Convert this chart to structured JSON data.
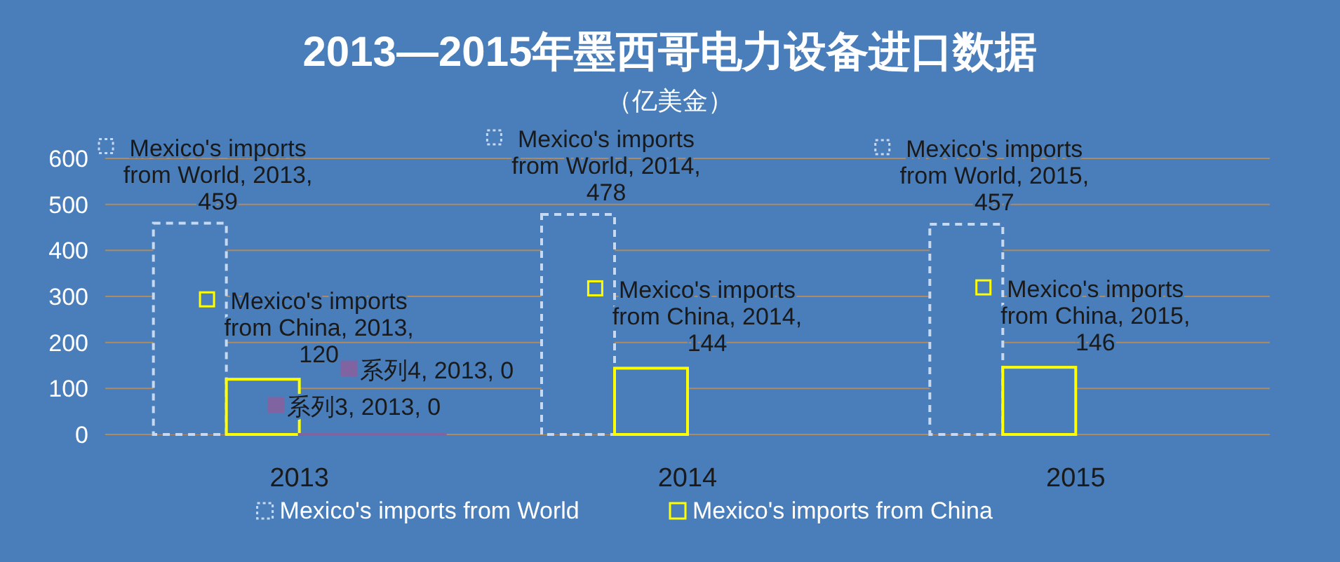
{
  "chart_data": {
    "type": "bar",
    "title": "2013—2015年墨西哥电力设备进口数据",
    "subtitle": "（亿美金）",
    "categories": [
      "2013",
      "2014",
      "2015"
    ],
    "series": [
      {
        "name": "Mexico's imports from World",
        "color": "#c6d9f1",
        "line_style": "dashed",
        "values": [
          459,
          478,
          457
        ],
        "value_labels": [
          "Mexico's imports from World, 2013, 459",
          "Mexico's imports from World, 2014, 478",
          "Mexico's imports from World, 2015, 457"
        ]
      },
      {
        "name": "Mexico's imports from China",
        "color": "#ffff00",
        "line_style": "solid",
        "values": [
          120,
          144,
          146
        ],
        "value_labels": [
          "Mexico's imports from China, 2013, 120",
          "Mexico's imports from China, 2014, 144",
          "Mexico's imports from China, 2015, 146"
        ]
      },
      {
        "color": "#8064a2",
        "values": [
          0,
          null,
          null
        ],
        "value_labels": [
          "系列3, 2013, 0",
          null,
          null
        ]
      },
      {
        "color": "#8064a2",
        "values": [
          0,
          null,
          null
        ],
        "value_labels": [
          "系列4, 2013, 0",
          null,
          null
        ]
      }
    ],
    "ylim": [
      0,
      600
    ],
    "yticks": [
      0,
      100,
      200,
      300,
      400,
      500,
      600
    ],
    "grid": "y",
    "legend": "bottom"
  }
}
